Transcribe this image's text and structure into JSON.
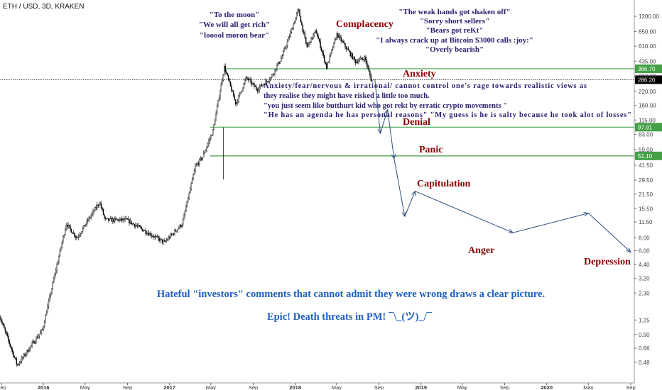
{
  "chart_data": {
    "type": "candlestick",
    "symbol_header": "ETH / USD, 3D, KRAKEN",
    "y_axis_scale": "log",
    "y_ticks": [
      "1200.00",
      "850.00",
      "610.00",
      "435.00",
      "310.00",
      "220.00",
      "160.00",
      "115.00",
      "83.00",
      "59.00",
      "41.50",
      "29.50",
      "21.50",
      "15.50",
      "11.50",
      "8.00",
      "6.00",
      "4.40",
      "3.20",
      "2.30",
      "1.25",
      "0.90",
      "0.66",
      "0.48"
    ],
    "x_ticks": [
      "Sep",
      "2016",
      "May",
      "Sep",
      "2017",
      "May",
      "Sep",
      "2018",
      "May",
      "Sep",
      "2019",
      "May",
      "Sep",
      "2020",
      "May",
      "Sep"
    ],
    "levels": [
      {
        "value": 366.7,
        "label": "366.70",
        "color": "#43a047",
        "dotted": false,
        "inverse_badge": false
      },
      {
        "value": 286.2,
        "label": "286.20",
        "color": "#000000",
        "dotted": true,
        "inverse_badge": true
      },
      {
        "value": 97.91,
        "label": "97.91",
        "color": "#43a047",
        "dotted": false,
        "inverse_badge": false
      },
      {
        "value": 51.1,
        "label": "51.10",
        "color": "#43a047",
        "dotted": false,
        "inverse_badge": false
      }
    ],
    "price_path": [
      {
        "date": "2015-08-25",
        "price": 1.5
      },
      {
        "date": "2015-10-20",
        "price": 0.45
      },
      {
        "date": "2016-01-01",
        "price": 1.0
      },
      {
        "date": "2016-03-10",
        "price": 11.0
      },
      {
        "date": "2016-04-10",
        "price": 8.0
      },
      {
        "date": "2016-06-15",
        "price": 18.0
      },
      {
        "date": "2016-07-01",
        "price": 12.0
      },
      {
        "date": "2016-09-01",
        "price": 12.0
      },
      {
        "date": "2016-12-20",
        "price": 7.2
      },
      {
        "date": "2017-02-10",
        "price": 11.0
      },
      {
        "date": "2017-03-20",
        "price": 40.0
      },
      {
        "date": "2017-04-10",
        "price": 50.0
      },
      {
        "date": "2017-05-10",
        "price": 90.0
      },
      {
        "date": "2017-06-12",
        "price": 380.0
      },
      {
        "date": "2017-07-16",
        "price": 165.0
      },
      {
        "date": "2017-08-15",
        "price": 300.0
      },
      {
        "date": "2017-09-15",
        "price": 230.0
      },
      {
        "date": "2017-10-25",
        "price": 300.0
      },
      {
        "date": "2017-11-25",
        "price": 470.0
      },
      {
        "date": "2017-12-20",
        "price": 800.0
      },
      {
        "date": "2018-01-13",
        "price": 1400.0
      },
      {
        "date": "2018-02-06",
        "price": 600.0
      },
      {
        "date": "2018-03-05",
        "price": 860.0
      },
      {
        "date": "2018-04-05",
        "price": 380.0
      },
      {
        "date": "2018-05-05",
        "price": 800.0
      },
      {
        "date": "2018-06-28",
        "price": 430.0
      },
      {
        "date": "2018-07-25",
        "price": 470.0
      },
      {
        "date": "2018-08-14",
        "price": 275.0
      }
    ],
    "projection_arrows": [
      {
        "from": {
          "date": "2018-08-20",
          "price": 290.0
        },
        "to": {
          "date": "2018-09-05",
          "price": 85.0
        }
      },
      {
        "from": {
          "date": "2018-09-05",
          "price": 85.0
        },
        "to": {
          "date": "2018-09-26",
          "price": 145.0
        }
      },
      {
        "from": {
          "date": "2018-09-26",
          "price": 145.0
        },
        "to": {
          "date": "2018-10-15",
          "price": 48.0
        }
      },
      {
        "from": {
          "date": "2018-10-15",
          "price": 48.0
        },
        "to": {
          "date": "2018-11-15",
          "price": 13.0
        }
      },
      {
        "from": {
          "date": "2018-11-15",
          "price": 13.0
        },
        "to": {
          "date": "2018-12-15",
          "price": 23.0
        }
      },
      {
        "from": {
          "date": "2018-12-15",
          "price": 23.0
        },
        "to": {
          "date": "2019-09-25",
          "price": 9.0
        }
      },
      {
        "from": {
          "date": "2019-09-25",
          "price": 9.0
        },
        "to": {
          "date": "2020-05-01",
          "price": 14.0
        }
      },
      {
        "from": {
          "date": "2020-05-01",
          "price": 14.0
        },
        "to": {
          "date": "2020-09-01",
          "price": 5.8
        }
      }
    ],
    "stage_labels": [
      "Complacency",
      "Anxiety",
      "Denial",
      "Panic",
      "Capitulation",
      "Anger",
      "Depression"
    ],
    "quotes_left": [
      "\"To the moon\"",
      "\"We will all get rich\"",
      "\"looool moron bear\""
    ],
    "quotes_right": [
      "\"The weak hands got shaken off\"",
      "\"Sorry short sellers\"",
      "\"Bears got reKt\"",
      "\"I always crack up at Bitcoin $3000 calls :joy:\"",
      "\"Overly bearish\""
    ],
    "anxiety_text": [
      "Anxiety/fear/nervous & irrational/ cannot control one's rage towards realistic views as",
      "they realise they might have risked a little too much.",
      "\"you just seem like butthurt kid who got rekt by erratic crypto movements \"",
      "\"He has an agenda he has personal reasons\" \"My guess is he is salty because he took alot of losses\""
    ],
    "caption_1": "Hateful \"investors\" comments that cannot admit they were wrong draws a clear picture.",
    "caption_2": "Epic! Death threats in PM! ¯\\_(ツ)_/¯",
    "colors": {
      "up": "#ffffff",
      "down": "#000000",
      "level_line": "#43a047",
      "stage_label": "#8b0000",
      "quote_text": "#2b2070",
      "caption": "#1f5fbf",
      "arrow": "#2f4f7f"
    }
  }
}
